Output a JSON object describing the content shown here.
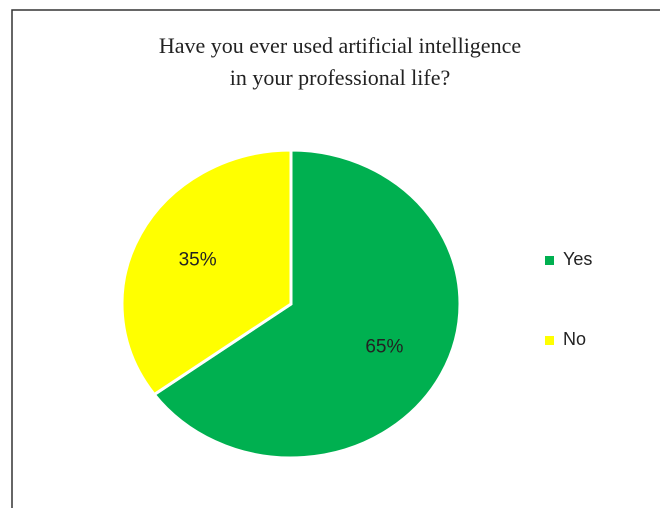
{
  "chart_data": {
    "type": "pie",
    "title": [
      "Have you ever used artificial intelligence",
      "in your professional life?"
    ],
    "categories": [
      "Yes",
      "No"
    ],
    "values": [
      65,
      35
    ],
    "value_labels": [
      "65%",
      "35%"
    ],
    "colors": [
      "#00b050",
      "#ffff00"
    ],
    "legend": "right"
  }
}
